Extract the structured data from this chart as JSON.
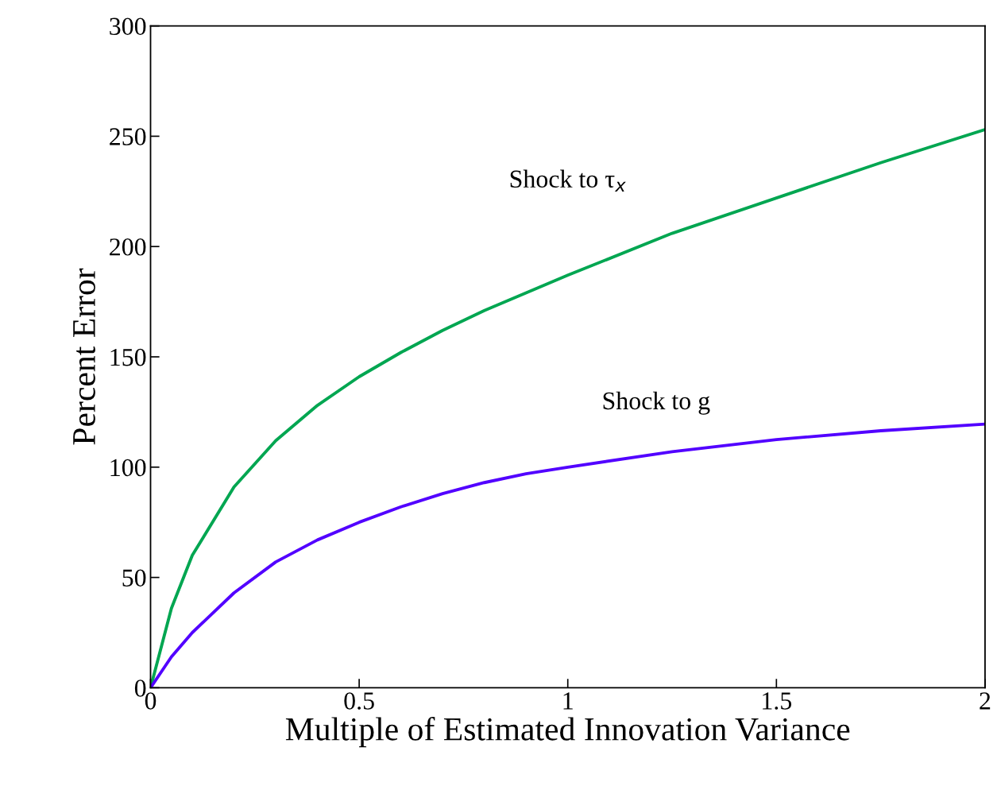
{
  "chart_data": {
    "type": "line",
    "xlabel": "Multiple of Estimated Innovation Variance",
    "ylabel": "Percent Error",
    "x": [
      0,
      0.05,
      0.1,
      0.2,
      0.3,
      0.4,
      0.5,
      0.6,
      0.7,
      0.8,
      0.9,
      1,
      1.25,
      1.5,
      1.75,
      2
    ],
    "series": [
      {
        "name": "Shock to τ$_{x}$",
        "color": "#00a651",
        "values": [
          0,
          36,
          60,
          91,
          112,
          128,
          141,
          152,
          162,
          171,
          179,
          187,
          206,
          222,
          238,
          253
        ]
      },
      {
        "name": "Shock to g",
        "color": "#5200ff",
        "values": [
          0,
          14,
          25,
          43,
          57,
          67,
          75,
          82,
          88,
          93,
          97,
          100,
          107,
          112.5,
          116.5,
          119.5
        ]
      }
    ],
    "xlim": [
      0,
      2
    ],
    "xticks": [
      0,
      0.5,
      1,
      1.5,
      2
    ],
    "ylim": [
      0,
      300
    ],
    "yticks": [
      0,
      50,
      100,
      150,
      200,
      250,
      300
    ],
    "grid": false,
    "legend": false,
    "marker": "none",
    "line_style": "solid"
  }
}
